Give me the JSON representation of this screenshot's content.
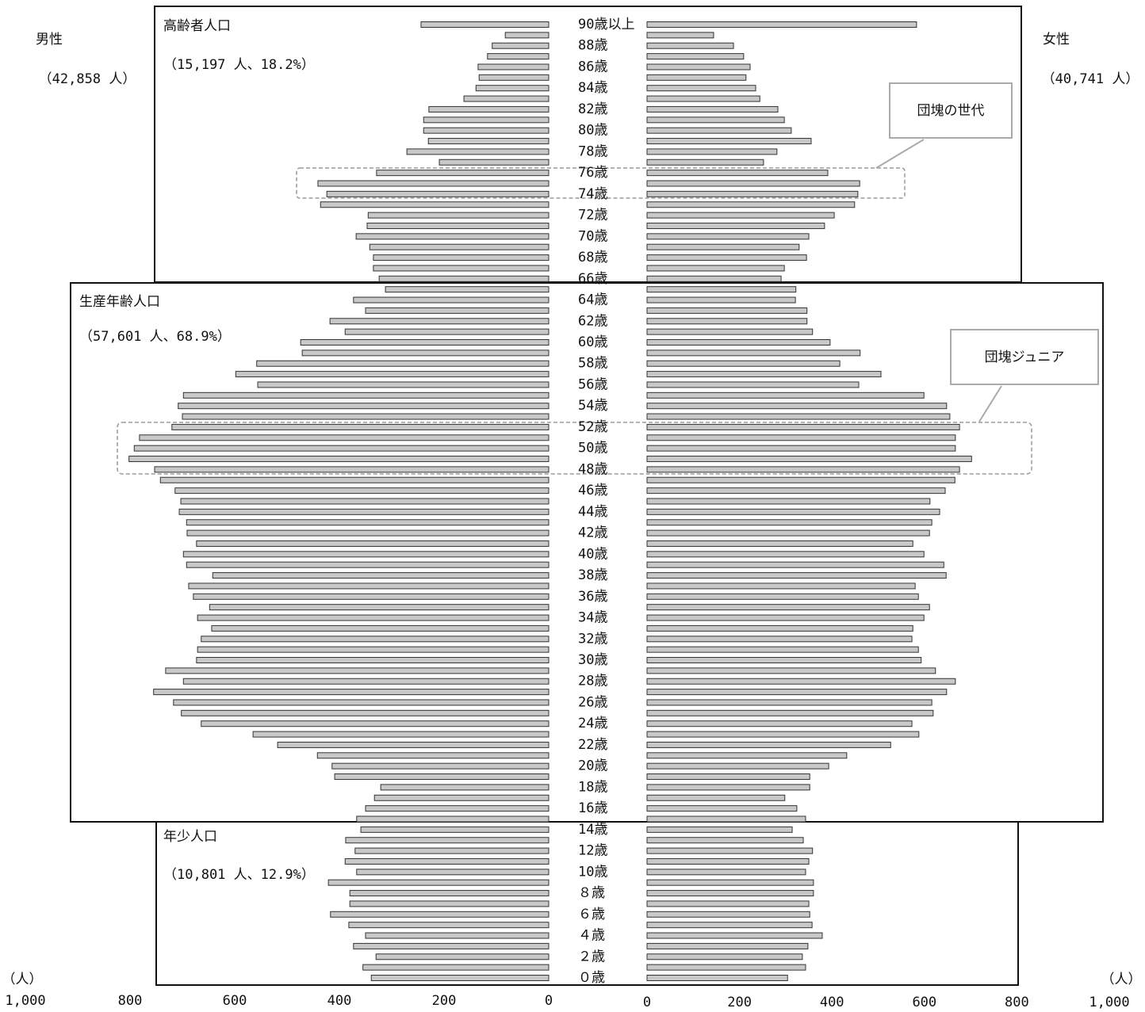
{
  "chart_data": {
    "type": "pyramid",
    "categories": [
      "90歳以上",
      null,
      "88歳",
      null,
      "86歳",
      null,
      "84歳",
      null,
      "82歳",
      null,
      "80歳",
      null,
      "78歳",
      null,
      "76歳",
      null,
      "74歳",
      null,
      "72歳",
      null,
      "70歳",
      null,
      "68歳",
      null,
      "66歳",
      null,
      "64歳",
      null,
      "62歳",
      null,
      "60歳",
      null,
      "58歳",
      null,
      "56歳",
      null,
      "54歳",
      null,
      "52歳",
      null,
      "50歳",
      null,
      "48歳",
      null,
      "46歳",
      null,
      "44歳",
      null,
      "42歳",
      null,
      "40歳",
      null,
      "38歳",
      null,
      "36歳",
      null,
      "34歳",
      null,
      "32歳",
      null,
      "30歳",
      null,
      "28歳",
      null,
      "26歳",
      null,
      "24歳",
      null,
      "22歳",
      null,
      "20歳",
      null,
      "18歳",
      null,
      "16歳",
      null,
      "14歳",
      null,
      "12歳",
      null,
      "10歳",
      null,
      "８歳",
      null,
      "６歳",
      null,
      "４歳",
      null,
      "２歳",
      null,
      "０歳"
    ],
    "series": [
      {
        "name": "男性",
        "total_label": "（42,858 人）",
        "color": "#c8c8c8",
        "values": [
          244,
          83,
          108,
          117,
          135,
          133,
          139,
          162,
          229,
          239,
          239,
          230,
          271,
          209,
          329,
          441,
          424,
          436,
          345,
          347,
          368,
          342,
          335,
          335,
          324,
          312,
          373,
          350,
          418,
          389,
          474,
          471,
          558,
          598,
          556,
          698,
          708,
          700,
          720,
          782,
          792,
          802,
          753,
          742,
          714,
          703,
          706,
          692,
          691,
          673,
          698,
          692,
          642,
          688,
          679,
          648,
          671,
          644,
          664,
          671,
          673,
          732,
          698,
          755,
          717,
          702,
          664,
          565,
          518,
          442,
          414,
          409,
          321,
          333,
          350,
          367,
          359,
          388,
          370,
          389,
          367,
          421,
          380,
          380,
          417,
          382,
          350,
          373,
          330,
          355,
          339
        ]
      },
      {
        "name": "女性",
        "total_label": "（40,741 人）",
        "color": "#c8c8c8",
        "values": [
          583,
          144,
          187,
          209,
          223,
          214,
          235,
          244,
          283,
          297,
          312,
          355,
          281,
          252,
          391,
          460,
          456,
          449,
          405,
          384,
          350,
          329,
          345,
          297,
          290,
          322,
          321,
          346,
          346,
          358,
          396,
          461,
          417,
          506,
          458,
          599,
          648,
          655,
          676,
          667,
          667,
          702,
          676,
          666,
          645,
          612,
          633,
          616,
          611,
          575,
          599,
          642,
          647,
          580,
          587,
          611,
          599,
          575,
          573,
          587,
          593,
          624,
          667,
          648,
          616,
          619,
          573,
          588,
          527,
          432,
          393,
          352,
          352,
          298,
          324,
          343,
          314,
          338,
          358,
          350,
          343,
          360,
          360,
          350,
          352,
          357,
          379,
          348,
          336,
          343,
          304
        ]
      }
    ],
    "xlim": [
      0,
      1000
    ],
    "xticks": [
      0,
      200,
      400,
      600,
      800,
      {
        "value": 1000,
        "label": "1,000"
      }
    ],
    "unit_label": "（人）",
    "groups": [
      {
        "name": "高齢者人口",
        "label": "（15,197 人、18.2%）"
      },
      {
        "name": "生産年齢人口",
        "label": "（57,601 人、68.9%）"
      },
      {
        "name": "年少人口",
        "label": "（10,801 人、12.9%）"
      }
    ],
    "annotations": [
      "団塊の世代",
      "団塊ジュニア"
    ]
  }
}
